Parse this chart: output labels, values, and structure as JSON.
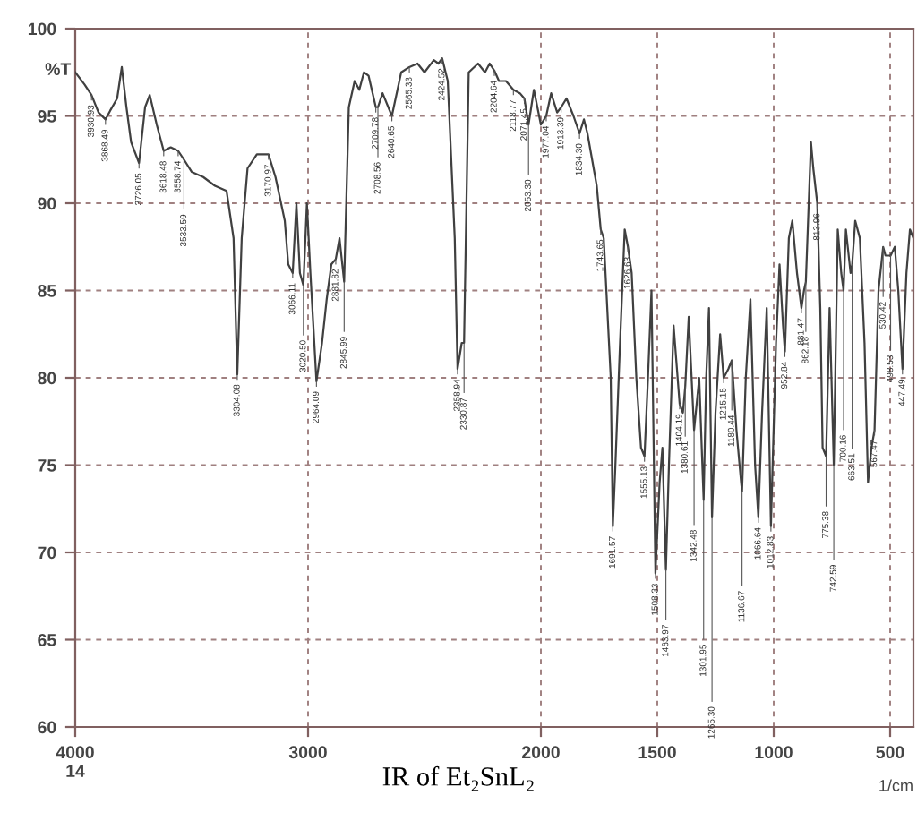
{
  "chart_data": {
    "type": "line",
    "title": "IR of Et₂SnL₂",
    "xlabel": "1/cm",
    "ylabel": "%T",
    "color": "#404040",
    "grid": true,
    "line_style": "solid",
    "marker": "none",
    "xlim": [
      4000,
      400
    ],
    "ylim": [
      60,
      100
    ],
    "xticks": [
      {
        "value": 4000,
        "label": "4000\n14"
      },
      3000,
      2000,
      1500,
      1000,
      500
    ],
    "yticks": [
      60,
      65,
      70,
      75,
      80,
      85,
      90,
      95,
      100
    ],
    "x": [
      4000,
      3960,
      3930,
      3900,
      3870,
      3850,
      3820,
      3800,
      3780,
      3760,
      3726,
      3700,
      3680,
      3650,
      3620,
      3590,
      3558,
      3533,
      3500,
      3450,
      3400,
      3350,
      3320,
      3304,
      3285,
      3260,
      3220,
      3170,
      3140,
      3100,
      3085,
      3066,
      3050,
      3035,
      3020,
      3005,
      2990,
      2964,
      2940,
      2920,
      2900,
      2881,
      2865,
      2845,
      2825,
      2800,
      2780,
      2760,
      2740,
      2709,
      2700,
      2680,
      2640,
      2600,
      2565,
      2530,
      2500,
      2460,
      2440,
      2424,
      2400,
      2370,
      2358,
      2340,
      2330,
      2310,
      2270,
      2240,
      2220,
      2200,
      2180,
      2150,
      2118,
      2090,
      2071,
      2053,
      2030,
      2000,
      1977,
      1956,
      1930,
      1913,
      1890,
      1860,
      1834,
      1815,
      1800,
      1780,
      1760,
      1743,
      1730,
      1700,
      1691,
      1680,
      1660,
      1640,
      1626,
      1610,
      1590,
      1570,
      1555,
      1540,
      1525,
      1508,
      1490,
      1478,
      1463,
      1450,
      1430,
      1404,
      1390,
      1380,
      1365,
      1342,
      1320,
      1301,
      1290,
      1278,
      1265,
      1250,
      1230,
      1215,
      1195,
      1180,
      1160,
      1140,
      1136,
      1120,
      1100,
      1080,
      1066,
      1050,
      1030,
      1012,
      990,
      975,
      960,
      952,
      935,
      920,
      900,
      881,
      870,
      862,
      840,
      830,
      813,
      800,
      790,
      775,
      760,
      742,
      725,
      710,
      700,
      690,
      670,
      663,
      650,
      630,
      610,
      595,
      580,
      567,
      550,
      530,
      520,
      498,
      480,
      465,
      447,
      430,
      415,
      400
    ],
    "values": [
      97.5,
      96.8,
      96.2,
      95.2,
      94.8,
      95.3,
      96,
      97.8,
      95.5,
      93.5,
      92.3,
      95.5,
      96.2,
      94.5,
      93,
      93.2,
      93,
      92.5,
      91.8,
      91.5,
      91,
      90.7,
      88,
      80.2,
      88,
      92,
      92.8,
      92.8,
      91.5,
      89,
      86.5,
      86,
      90,
      86,
      85.3,
      90,
      86,
      79.8,
      82,
      84.5,
      86.5,
      86.8,
      88,
      85.5,
      95.5,
      97,
      96.5,
      97.5,
      97.3,
      95.5,
      95.5,
      96.3,
      95,
      97.5,
      97.8,
      98,
      97.5,
      98.2,
      98,
      98.3,
      97,
      88,
      80.5,
      82,
      82,
      97.5,
      98,
      97.5,
      98,
      97.6,
      97,
      97,
      96.5,
      96.3,
      96,
      94.5,
      96.5,
      94.5,
      95,
      96.3,
      95.2,
      95.5,
      96,
      95,
      94,
      94.8,
      94,
      92.5,
      91,
      88.5,
      88,
      80,
      71.5,
      75,
      82,
      88.5,
      87.5,
      86,
      80,
      76,
      75.5,
      80,
      85,
      68.8,
      74,
      76,
      69,
      75,
      83,
      78.5,
      78,
      79.5,
      83.5,
      77,
      80,
      73,
      80,
      84,
      72,
      78,
      82.5,
      80,
      80.5,
      81,
      77,
      74,
      73.5,
      80,
      84.5,
      75,
      72,
      78,
      84,
      71.5,
      82,
      86.5,
      83,
      81.5,
      88,
      89,
      86,
      84,
      85,
      85.5,
      93.5,
      92,
      90,
      84,
      76,
      75.5,
      84,
      75,
      88.5,
      86,
      85,
      88.5,
      86,
      86.5,
      89,
      88,
      82,
      74,
      76,
      77,
      85,
      87.5,
      87,
      87,
      87.5,
      85,
      80.5,
      86,
      88.5,
      88
    ],
    "annotations": [
      {
        "text": "3930.93",
        "x": 3930,
        "y": 96.2
      },
      {
        "text": "3868.49",
        "x": 3870,
        "y": 94.8
      },
      {
        "text": "3726.05",
        "x": 3726,
        "y": 92.3
      },
      {
        "text": "3618.48",
        "x": 3620,
        "y": 93
      },
      {
        "text": "3558.74",
        "x": 3558,
        "y": 93
      },
      {
        "text": "3533.59",
        "x": 3533,
        "y": 92.5
      },
      {
        "text": "3304.08",
        "x": 3304,
        "y": 80.2
      },
      {
        "text": "3170.97",
        "x": 3170,
        "y": 92.8
      },
      {
        "text": "3066.11",
        "x": 3066,
        "y": 86
      },
      {
        "text": "3020.50",
        "x": 3020,
        "y": 85.3
      },
      {
        "text": "2964.09",
        "x": 2964,
        "y": 79.8
      },
      {
        "text": "2881.82",
        "x": 2881,
        "y": 86.8
      },
      {
        "text": "2845.99",
        "x": 2845,
        "y": 85.5
      },
      {
        "text": "2709.78",
        "x": 2709,
        "y": 95.5
      },
      {
        "text": "2708.56",
        "x": 2700,
        "y": 95.5
      },
      {
        "text": "2640.65",
        "x": 2640,
        "y": 95
      },
      {
        "text": "2565.33",
        "x": 2565,
        "y": 97.8
      },
      {
        "text": "2424.52",
        "x": 2424,
        "y": 98.3
      },
      {
        "text": "2358.94",
        "x": 2358,
        "y": 80.5
      },
      {
        "text": "2330.87",
        "x": 2330,
        "y": 82
      },
      {
        "text": "2204.64",
        "x": 2200,
        "y": 97.6
      },
      {
        "text": "2118.77",
        "x": 2118,
        "y": 96.5
      },
      {
        "text": "2071.45",
        "x": 2071,
        "y": 96
      },
      {
        "text": "2053.30",
        "x": 2053,
        "y": 94.5
      },
      {
        "text": "1977.04",
        "x": 1977,
        "y": 95
      },
      {
        "text": "1913.39",
        "x": 1913,
        "y": 95.5
      },
      {
        "text": "1834.30",
        "x": 1834,
        "y": 94
      },
      {
        "text": "1743.65",
        "x": 1743,
        "y": 88.5
      },
      {
        "text": "1691.57",
        "x": 1691,
        "y": 71.5
      },
      {
        "text": "1626.63",
        "x": 1626,
        "y": 87.5
      },
      {
        "text": "1555.13",
        "x": 1555,
        "y": 75.5
      },
      {
        "text": "1508.33",
        "x": 1508,
        "y": 68.8
      },
      {
        "text": "1463.97",
        "x": 1463,
        "y": 69
      },
      {
        "text": "1404.19",
        "x": 1404,
        "y": 78.5
      },
      {
        "text": "1380.61",
        "x": 1380,
        "y": 79.5
      },
      {
        "text": "1342.48",
        "x": 1342,
        "y": 77
      },
      {
        "text": "1301.95",
        "x": 1301,
        "y": 73
      },
      {
        "text": "1265.30",
        "x": 1265,
        "y": 72
      },
      {
        "text": "1215.15",
        "x": 1215,
        "y": 80
      },
      {
        "text": "1180.44",
        "x": 1180,
        "y": 81
      },
      {
        "text": "1136.67",
        "x": 1136,
        "y": 73.5
      },
      {
        "text": "1066.64",
        "x": 1066,
        "y": 72
      },
      {
        "text": "1012.83",
        "x": 1012,
        "y": 71.5
      },
      {
        "text": "952.84",
        "x": 952,
        "y": 81.5
      },
      {
        "text": "881.47",
        "x": 881,
        "y": 84
      },
      {
        "text": "862.18",
        "x": 862,
        "y": 85.5
      },
      {
        "text": "813.96",
        "x": 813,
        "y": 90
      },
      {
        "text": "775.38",
        "x": 775,
        "y": 75.5
      },
      {
        "text": "742.59",
        "x": 742,
        "y": 75
      },
      {
        "text": "700.16",
        "x": 700,
        "y": 85
      },
      {
        "text": "663.51",
        "x": 663,
        "y": 86.5
      },
      {
        "text": "567.47",
        "x": 567,
        "y": 77
      },
      {
        "text": "530.42",
        "x": 530,
        "y": 87.5
      },
      {
        "text": "498.53",
        "x": 498,
        "y": 87
      },
      {
        "text": "447.49",
        "x": 447,
        "y": 80.5
      }
    ]
  }
}
